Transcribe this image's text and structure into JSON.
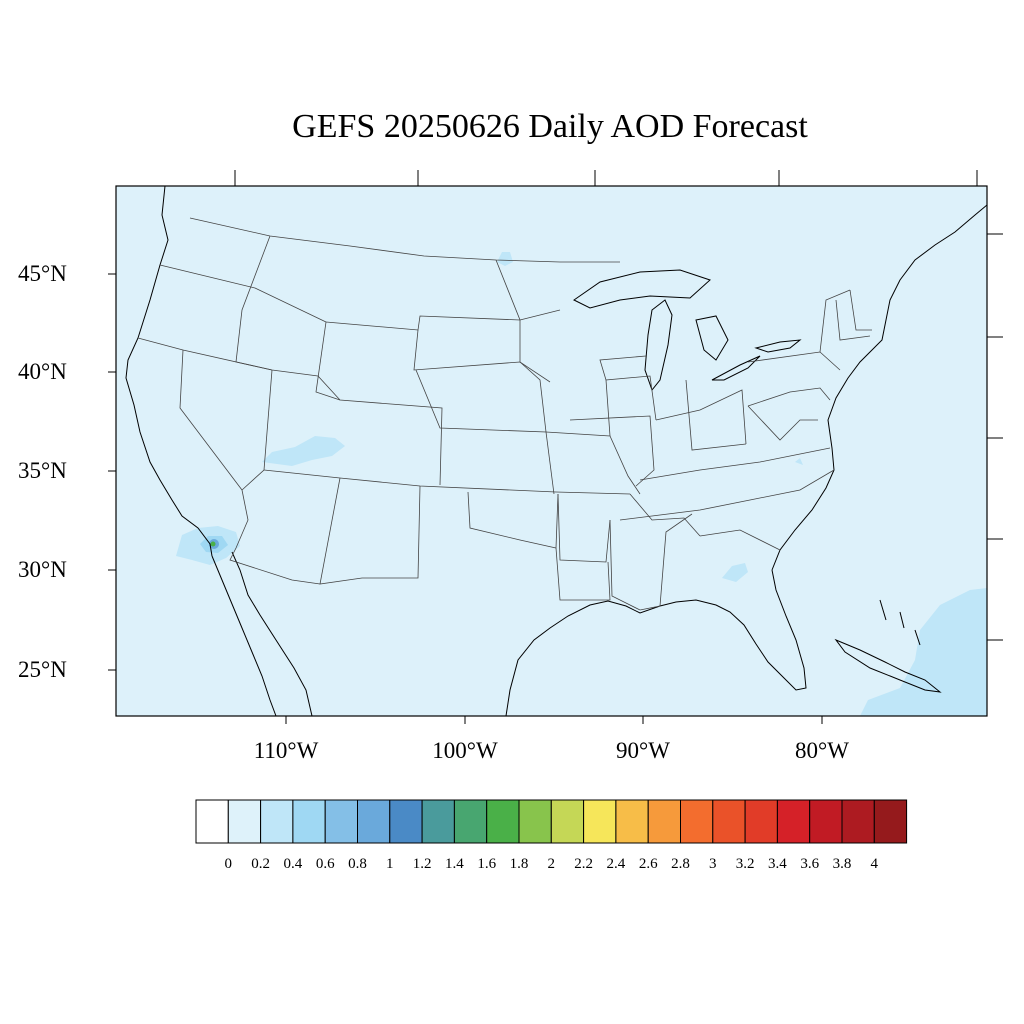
{
  "title": "GEFS 20250626 Daily AOD Forecast",
  "map": {
    "projection": "Lambert conformal (CONUS)",
    "background_color": "#ddf1fa",
    "lat_labels": [
      "45°N",
      "40°N",
      "35°N",
      "30°N",
      "25°N"
    ],
    "lon_labels": [
      "110°W",
      "100°W",
      "90°W",
      "80°W"
    ],
    "features": [
      {
        "name": "smoke-plume-baja",
        "region": "southern California / Baja border",
        "peak_aod": 1.8
      },
      {
        "name": "smoke-plume-utah",
        "region": "southern Utah",
        "peak_aod": 0.4
      },
      {
        "name": "dust-caribbean",
        "region": "Bahamas / Caribbean",
        "peak_aod": 0.4
      },
      {
        "name": "haze-georgia",
        "region": "southern Georgia",
        "peak_aod": 0.4
      },
      {
        "name": "haze-north-dakota",
        "region": "eastern North Dakota",
        "peak_aod": 0.4
      }
    ]
  },
  "colorbar": {
    "labels": [
      "0",
      "0.2",
      "0.4",
      "0.6",
      "0.8",
      "1",
      "1.2",
      "1.4",
      "1.6",
      "1.8",
      "2",
      "2.2",
      "2.4",
      "2.6",
      "2.8",
      "3",
      "3.2",
      "3.4",
      "3.6",
      "3.8",
      "4"
    ],
    "colors": [
      "#ffffff",
      "#def2fa",
      "#bfe6f8",
      "#9fd8f3",
      "#84bfe7",
      "#6aa9db",
      "#4a8ac6",
      "#4a9b9c",
      "#48a670",
      "#4ab048",
      "#88c44c",
      "#c5d756",
      "#f6e65a",
      "#f7bd48",
      "#f69a3b",
      "#f36d2e",
      "#ea5229",
      "#e13c28",
      "#d52128",
      "#c11b24",
      "#ad1b21",
      "#951a1c"
    ]
  }
}
